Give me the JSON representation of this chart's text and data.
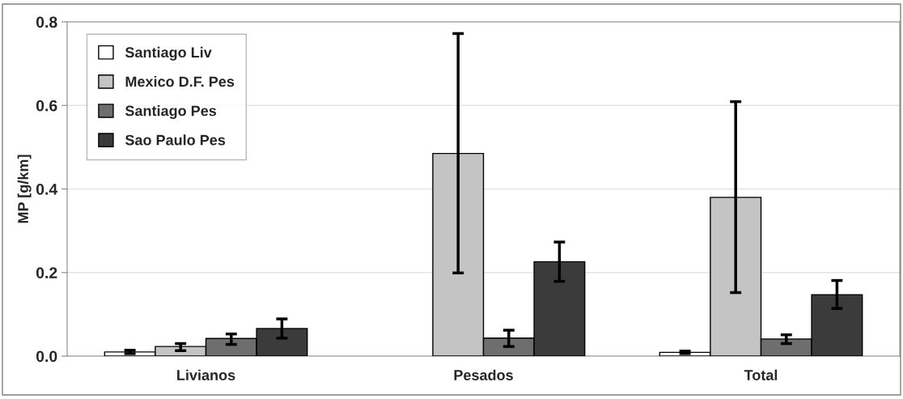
{
  "chart_data": {
    "type": "bar",
    "ylabel": "MP [g/km]",
    "categories": [
      "Livianos",
      "Pesados",
      "Total"
    ],
    "series": [
      {
        "name": "Santiago Liv",
        "color": "#ffffff",
        "values": [
          0.01,
          null,
          0.009
        ],
        "errors": [
          [
            0.006,
            0.014
          ],
          null,
          [
            0.006,
            0.012
          ]
        ]
      },
      {
        "name": "Mexico D.F. Pes",
        "color": "#c4c4c4",
        "values": [
          0.023,
          0.485,
          0.38
        ],
        "errors": [
          [
            0.013,
            0.03
          ],
          [
            0.199,
            0.772
          ],
          [
            0.152,
            0.609
          ]
        ]
      },
      {
        "name": "Santiago Pes",
        "color": "#6e6e6e",
        "values": [
          0.042,
          0.043,
          0.041
        ],
        "errors": [
          [
            0.028,
            0.053
          ],
          [
            0.023,
            0.062
          ],
          [
            0.03,
            0.051
          ]
        ]
      },
      {
        "name": "Sao Paulo Pes",
        "color": "#3b3b3b",
        "values": [
          0.066,
          0.226,
          0.147
        ],
        "errors": [
          [
            0.043,
            0.089
          ],
          [
            0.179,
            0.273
          ],
          [
            0.114,
            0.181
          ]
        ]
      }
    ],
    "ylim": [
      0,
      0.8
    ],
    "yticks": [
      {
        "value": 0,
        "label": "0.0"
      },
      0.2,
      0.4,
      0.6,
      0.8
    ],
    "grid": "y",
    "legend": "top left"
  }
}
